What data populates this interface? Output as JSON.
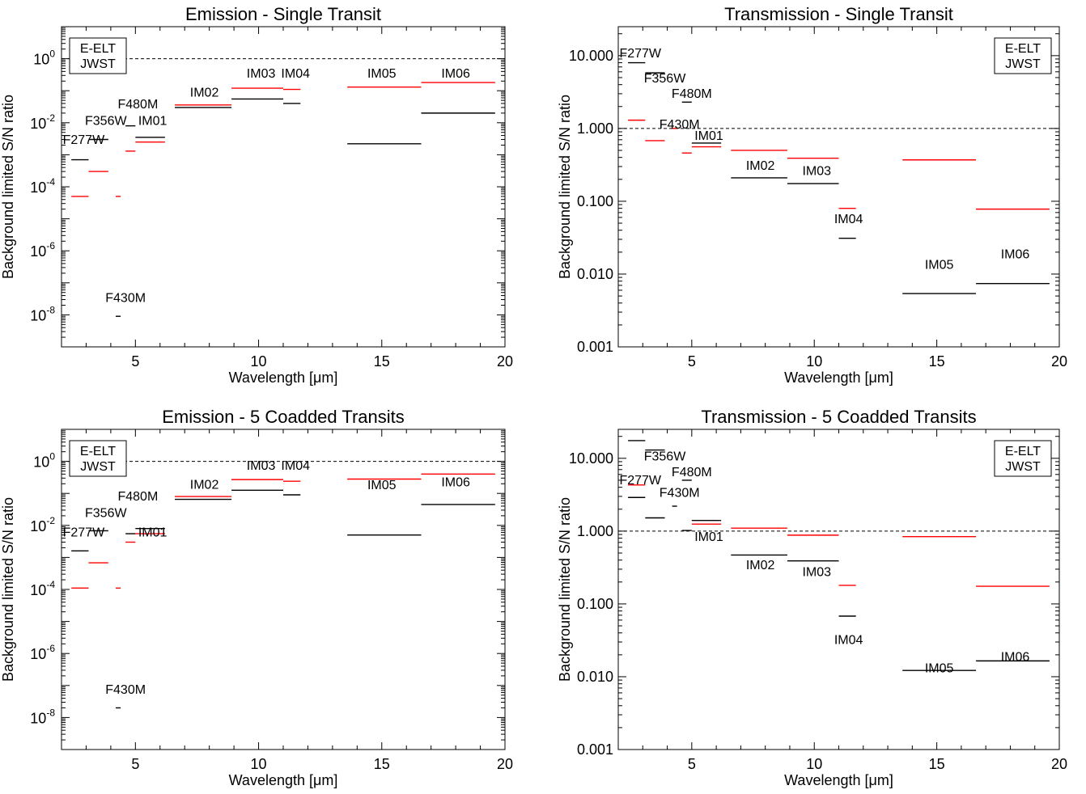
{
  "figure": {
    "text_color": "#000000",
    "jwst_color": "#ff0000",
    "eelt_color": "#000000"
  },
  "chart_data": [
    {
      "type": "scatter",
      "title": "Emission - Single Transit",
      "xlabel": "Wavelength [μm]",
      "ylabel": "Background limited S/N ratio",
      "xlim": [
        2,
        20
      ],
      "ylim": [
        1e-09,
        10.0
      ],
      "yscale": "log",
      "y_tick_style": "power",
      "x_ticks": [
        5,
        10,
        15,
        20
      ],
      "y_ticks": [
        1e-08,
        1e-06,
        0.0001,
        0.01,
        1
      ],
      "reference_line": 1,
      "legend": {
        "position": "top-left",
        "entries": [
          "E-ELT",
          "JWST"
        ]
      },
      "series": [
        {
          "name": "E-ELT",
          "color": "#000000",
          "segments": [
            {
              "x0": 2.4,
              "x1": 3.1,
              "y": 0.0007
            },
            {
              "x0": 3.1,
              "x1": 3.9,
              "y": 0.003
            },
            {
              "x0": 4.2,
              "x1": 4.4,
              "y": 9e-09
            },
            {
              "x0": 4.6,
              "x1": 5.0,
              "y": 0.008
            },
            {
              "x0": 5.0,
              "x1": 6.2,
              "y": 0.0035
            },
            {
              "x0": 6.6,
              "x1": 8.9,
              "y": 0.03
            },
            {
              "x0": 8.9,
              "x1": 11.0,
              "y": 0.055
            },
            {
              "x0": 11.0,
              "x1": 11.7,
              "y": 0.04
            },
            {
              "x0": 13.6,
              "x1": 16.6,
              "y": 0.0022
            },
            {
              "x0": 16.6,
              "x1": 19.6,
              "y": 0.02
            }
          ]
        },
        {
          "name": "JWST",
          "color": "#ff0000",
          "segments": [
            {
              "x0": 2.4,
              "x1": 3.1,
              "y": 5e-05
            },
            {
              "x0": 3.1,
              "x1": 3.9,
              "y": 0.0003
            },
            {
              "x0": 4.2,
              "x1": 4.4,
              "y": 5e-05
            },
            {
              "x0": 4.6,
              "x1": 5.0,
              "y": 0.0013
            },
            {
              "x0": 5.0,
              "x1": 6.2,
              "y": 0.0025
            },
            {
              "x0": 6.6,
              "x1": 8.9,
              "y": 0.036
            },
            {
              "x0": 8.9,
              "x1": 11.0,
              "y": 0.12
            },
            {
              "x0": 11.0,
              "x1": 11.7,
              "y": 0.11
            },
            {
              "x0": 13.6,
              "x1": 16.6,
              "y": 0.13
            },
            {
              "x0": 16.6,
              "x1": 19.6,
              "y": 0.18
            }
          ]
        }
      ],
      "annotations": [
        {
          "text": "F277W",
          "x": 2.9,
          "y": 0.0022
        },
        {
          "text": "F356W",
          "x": 3.8,
          "y": 0.0085
        },
        {
          "text": "F480M",
          "x": 5.1,
          "y": 0.028
        },
        {
          "text": "IM01",
          "x": 5.7,
          "y": 0.0085
        },
        {
          "text": "F430M",
          "x": 4.6,
          "y": 2.5e-08
        },
        {
          "text": "IM02",
          "x": 7.8,
          "y": 0.065
        },
        {
          "text": "IM03",
          "x": 10.1,
          "y": 0.26
        },
        {
          "text": "IM04",
          "x": 11.5,
          "y": 0.26
        },
        {
          "text": "IM05",
          "x": 15.0,
          "y": 0.26
        },
        {
          "text": "IM06",
          "x": 18.0,
          "y": 0.26
        }
      ]
    },
    {
      "type": "scatter",
      "title": "Transmission - Single Transit",
      "xlabel": "Wavelength [μm]",
      "ylabel": "Background limited S/N ratio",
      "xlim": [
        2,
        20
      ],
      "ylim": [
        0.001,
        25
      ],
      "yscale": "log",
      "y_tick_style": "decimal",
      "x_ticks": [
        5,
        10,
        15,
        20
      ],
      "y_ticks": [
        0.001,
        0.01,
        0.1,
        1,
        10
      ],
      "y_tick_labels": [
        "0.001",
        "0.010",
        "0.100",
        "1.000",
        "10.000"
      ],
      "reference_line": 1,
      "legend": {
        "position": "top-right",
        "entries": [
          "E-ELT",
          "JWST"
        ]
      },
      "series": [
        {
          "name": "E-ELT",
          "color": "#000000",
          "segments": [
            {
              "x0": 2.4,
              "x1": 3.1,
              "y": 8.0
            },
            {
              "x0": 3.1,
              "x1": 3.9,
              "y": 5.8
            },
            {
              "x0": 4.6,
              "x1": 5.0,
              "y": 2.3
            },
            {
              "x0": 5.0,
              "x1": 6.2,
              "y": 0.63
            },
            {
              "x0": 6.6,
              "x1": 8.9,
              "y": 0.21
            },
            {
              "x0": 8.9,
              "x1": 11.0,
              "y": 0.175
            },
            {
              "x0": 11.0,
              "x1": 11.7,
              "y": 0.031
            },
            {
              "x0": 13.6,
              "x1": 16.6,
              "y": 0.0054
            },
            {
              "x0": 16.6,
              "x1": 19.6,
              "y": 0.0074
            }
          ]
        },
        {
          "name": "JWST",
          "color": "#ff0000",
          "segments": [
            {
              "x0": 2.4,
              "x1": 3.1,
              "y": 1.3
            },
            {
              "x0": 3.1,
              "x1": 3.9,
              "y": 0.68
            },
            {
              "x0": 4.2,
              "x1": 4.4,
              "y": 1.0
            },
            {
              "x0": 4.6,
              "x1": 5.0,
              "y": 0.46
            },
            {
              "x0": 5.0,
              "x1": 6.2,
              "y": 0.56
            },
            {
              "x0": 6.6,
              "x1": 8.9,
              "y": 0.5
            },
            {
              "x0": 8.9,
              "x1": 11.0,
              "y": 0.39
            },
            {
              "x0": 11.0,
              "x1": 11.7,
              "y": 0.08
            },
            {
              "x0": 13.6,
              "x1": 16.6,
              "y": 0.37
            },
            {
              "x0": 16.6,
              "x1": 19.6,
              "y": 0.078
            }
          ]
        }
      ],
      "annotations": [
        {
          "text": "F277W",
          "x": 2.9,
          "y": 9.5
        },
        {
          "text": "F356W",
          "x": 3.9,
          "y": 4.3
        },
        {
          "text": "F480M",
          "x": 5.0,
          "y": 2.65
        },
        {
          "text": "F430M",
          "x": 4.5,
          "y": 1.0
        },
        {
          "text": "IM01",
          "x": 5.7,
          "y": 0.7
        },
        {
          "text": "IM02",
          "x": 7.8,
          "y": 0.27
        },
        {
          "text": "IM03",
          "x": 10.1,
          "y": 0.23
        },
        {
          "text": "IM04",
          "x": 11.4,
          "y": 0.05
        },
        {
          "text": "IM05",
          "x": 15.1,
          "y": 0.0118
        },
        {
          "text": "IM06",
          "x": 18.2,
          "y": 0.0165
        }
      ]
    },
    {
      "type": "scatter",
      "title": "Emission - 5 Coadded Transits",
      "xlabel": "Wavelength [μm]",
      "ylabel": "Background limited S/N ratio",
      "xlim": [
        2,
        20
      ],
      "ylim": [
        1e-09,
        10.0
      ],
      "yscale": "log",
      "y_tick_style": "power",
      "x_ticks": [
        5,
        10,
        15,
        20
      ],
      "y_ticks": [
        1e-08,
        1e-06,
        0.0001,
        0.01,
        1
      ],
      "reference_line": 1,
      "legend": {
        "position": "top-left",
        "entries": [
          "E-ELT",
          "JWST"
        ]
      },
      "series": [
        {
          "name": "E-ELT",
          "color": "#000000",
          "segments": [
            {
              "x0": 2.4,
              "x1": 3.1,
              "y": 0.0016
            },
            {
              "x0": 3.1,
              "x1": 3.9,
              "y": 0.0068
            },
            {
              "x0": 4.2,
              "x1": 4.4,
              "y": 2e-08
            },
            {
              "x0": 4.6,
              "x1": 5.0,
              "y": 0.0055
            },
            {
              "x0": 5.0,
              "x1": 6.2,
              "y": 0.008
            },
            {
              "x0": 6.6,
              "x1": 8.9,
              "y": 0.065
            },
            {
              "x0": 8.9,
              "x1": 11.0,
              "y": 0.125
            },
            {
              "x0": 11.0,
              "x1": 11.7,
              "y": 0.09
            },
            {
              "x0": 13.6,
              "x1": 16.6,
              "y": 0.005
            },
            {
              "x0": 16.6,
              "x1": 19.6,
              "y": 0.045
            }
          ]
        },
        {
          "name": "JWST",
          "color": "#ff0000",
          "segments": [
            {
              "x0": 2.4,
              "x1": 3.1,
              "y": 0.00011
            },
            {
              "x0": 3.1,
              "x1": 3.9,
              "y": 0.00068
            },
            {
              "x0": 4.2,
              "x1": 4.4,
              "y": 0.00011
            },
            {
              "x0": 4.6,
              "x1": 5.0,
              "y": 0.003
            },
            {
              "x0": 5.0,
              "x1": 6.2,
              "y": 0.0055
            },
            {
              "x0": 6.6,
              "x1": 8.9,
              "y": 0.08
            },
            {
              "x0": 8.9,
              "x1": 11.0,
              "y": 0.27
            },
            {
              "x0": 11.0,
              "x1": 11.7,
              "y": 0.24
            },
            {
              "x0": 13.6,
              "x1": 16.6,
              "y": 0.28
            },
            {
              "x0": 16.6,
              "x1": 19.6,
              "y": 0.4
            }
          ]
        }
      ],
      "annotations": [
        {
          "text": "F277W",
          "x": 2.9,
          "y": 0.0045
        },
        {
          "text": "F356W",
          "x": 3.8,
          "y": 0.018
        },
        {
          "text": "F480M",
          "x": 5.1,
          "y": 0.06
        },
        {
          "text": "IM01",
          "x": 5.7,
          "y": 0.0045
        },
        {
          "text": "F430M",
          "x": 4.6,
          "y": 5.5e-08
        },
        {
          "text": "IM02",
          "x": 7.8,
          "y": 0.14
        },
        {
          "text": "IM03",
          "x": 10.1,
          "y": 0.55
        },
        {
          "text": "IM04",
          "x": 11.5,
          "y": 0.55
        },
        {
          "text": "IM05",
          "x": 15.0,
          "y": 0.135
        },
        {
          "text": "IM06",
          "x": 18.0,
          "y": 0.165
        }
      ]
    },
    {
      "type": "scatter",
      "title": "Transmission - 5 Coadded Transits",
      "xlabel": "Wavelength [μm]",
      "ylabel": "Background limited S/N ratio",
      "xlim": [
        2,
        20
      ],
      "ylim": [
        0.001,
        25
      ],
      "yscale": "log",
      "y_tick_style": "decimal",
      "x_ticks": [
        5,
        10,
        15,
        20
      ],
      "y_ticks": [
        0.001,
        0.01,
        0.1,
        1,
        10
      ],
      "y_tick_labels": [
        "0.001",
        "0.010",
        "0.100",
        "1.000",
        "10.000"
      ],
      "reference_line": 1,
      "legend": {
        "position": "top-right",
        "entries": [
          "E-ELT",
          "JWST"
        ]
      },
      "series": [
        {
          "name": "E-ELT",
          "color": "#000000",
          "segments": [
            {
              "x0": 2.4,
              "x1": 3.1,
              "y": 17.5
            },
            {
              "x0": 3.1,
              "x1": 3.9,
              "y": 13.0
            },
            {
              "x0": 2.4,
              "x1": 3.1,
              "y": 2.9
            },
            {
              "x0": 3.1,
              "x1": 3.9,
              "y": 1.52
            },
            {
              "x0": 4.2,
              "x1": 4.4,
              "y": 2.2
            },
            {
              "x0": 4.6,
              "x1": 5.0,
              "y": 5.0
            },
            {
              "x0": 4.6,
              "x1": 5.0,
              "y": 1.02
            },
            {
              "x0": 5.0,
              "x1": 6.2,
              "y": 1.4
            },
            {
              "x0": 6.6,
              "x1": 8.9,
              "y": 0.47
            },
            {
              "x0": 8.9,
              "x1": 11.0,
              "y": 0.39
            },
            {
              "x0": 11.0,
              "x1": 11.7,
              "y": 0.068
            },
            {
              "x0": 13.6,
              "x1": 16.6,
              "y": 0.0122
            },
            {
              "x0": 16.6,
              "x1": 19.6,
              "y": 0.0165
            }
          ]
        },
        {
          "name": "JWST",
          "color": "#ff0000",
          "segments": [
            {
              "x0": 2.4,
              "x1": 3.1,
              "y": 4.3
            },
            {
              "x0": 5.0,
              "x1": 6.2,
              "y": 1.25
            },
            {
              "x0": 6.6,
              "x1": 8.9,
              "y": 1.1
            },
            {
              "x0": 8.9,
              "x1": 11.0,
              "y": 0.88
            },
            {
              "x0": 11.0,
              "x1": 11.7,
              "y": 0.18
            },
            {
              "x0": 13.6,
              "x1": 16.6,
              "y": 0.84
            },
            {
              "x0": 16.6,
              "x1": 19.6,
              "y": 0.175
            }
          ]
        }
      ],
      "annotations": [
        {
          "text": "F356W",
          "x": 3.9,
          "y": 9.3
        },
        {
          "text": "F480M",
          "x": 5.0,
          "y": 5.7
        },
        {
          "text": "F277W",
          "x": 2.9,
          "y": 4.4
        },
        {
          "text": "F430M",
          "x": 4.5,
          "y": 2.95
        },
        {
          "text": "IM01",
          "x": 5.7,
          "y": 0.73
        },
        {
          "text": "IM02",
          "x": 7.8,
          "y": 0.3
        },
        {
          "text": "IM03",
          "x": 10.1,
          "y": 0.24
        },
        {
          "text": "IM04",
          "x": 11.4,
          "y": 0.028
        },
        {
          "text": "IM05",
          "x": 15.1,
          "y": 0.0115
        },
        {
          "text": "IM06",
          "x": 18.2,
          "y": 0.0165
        }
      ]
    }
  ]
}
